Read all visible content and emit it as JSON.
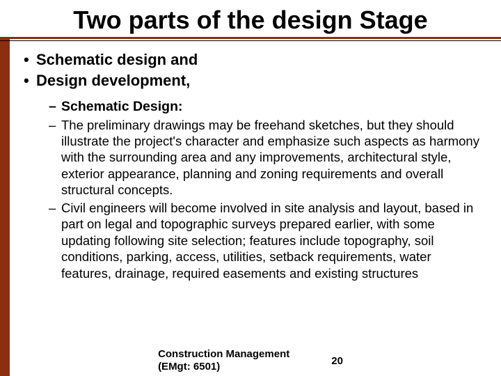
{
  "colors": {
    "accent": "#8b2f0f",
    "text": "#000000",
    "background": "#ffffff"
  },
  "typography": {
    "title_fontsize": 36,
    "bullet_fontsize": 22,
    "subbullet_fontsize": 18.5,
    "footer_fontsize": 15,
    "font_family": "Arial"
  },
  "title": "Two parts of the design Stage",
  "bullets": {
    "item0": "Schematic design and",
    "item1": "Design development,"
  },
  "sub_bullets": {
    "heading": "Schematic Design:",
    "para0": "The preliminary drawings may be freehand sketches, but they should illustrate the project's character and emphasize such aspects as harmony with the surrounding area and any improvements, architectural style, exterior appearance, planning and zoning requirements and overall structural concepts.",
    "para1": "Civil engineers will become involved in site analysis and layout, based in part on legal and topographic surveys prepared earlier, with some updating following site selection; features include topography, soil conditions, parking, access, utilities, setback requirements, water features, drainage, required easements and existing structures"
  },
  "footer": {
    "course_line1": "Construction Management",
    "course_line2": "(EMgt: 6501)",
    "page_number": "20"
  }
}
